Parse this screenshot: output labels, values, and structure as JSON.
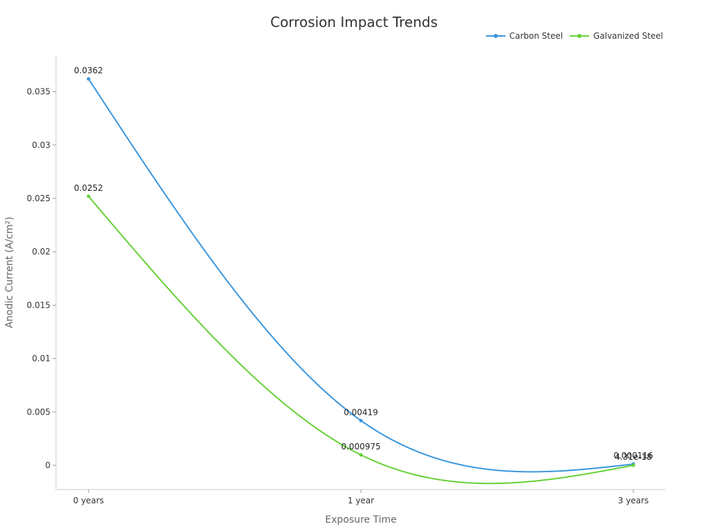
{
  "chart_data": {
    "type": "line",
    "title": "Corrosion Impact Trends",
    "xlabel": "Exposure Time",
    "ylabel": "Anodic Current (A/cm²)",
    "categories": [
      "0 years",
      "1 year",
      "3 years"
    ],
    "ylim": [
      -0.0022,
      0.0385
    ],
    "yticks": [
      0,
      0.005,
      0.01,
      0.015,
      0.02,
      0.025,
      0.03,
      0.035
    ],
    "ytick_labels": [
      "0",
      "0.005",
      "0.01",
      "0.015",
      "0.02",
      "0.025",
      "0.03",
      "0.035"
    ],
    "grid": false,
    "legend_position": "top-right",
    "smooth": true,
    "series": [
      {
        "name": "Carbon Steel",
        "color": "#3a96dd",
        "values": [
          0.0362,
          0.00419,
          0.000116
        ],
        "labels": [
          "0.0362",
          "0.00419",
          "0.000116"
        ]
      },
      {
        "name": "Galvanized Steel",
        "color": "#66d136",
        "values": [
          0.0252,
          0.000975,
          4.31e-18
        ],
        "labels": [
          "0.0252",
          "0.000975",
          "4.31e-18"
        ]
      }
    ]
  }
}
